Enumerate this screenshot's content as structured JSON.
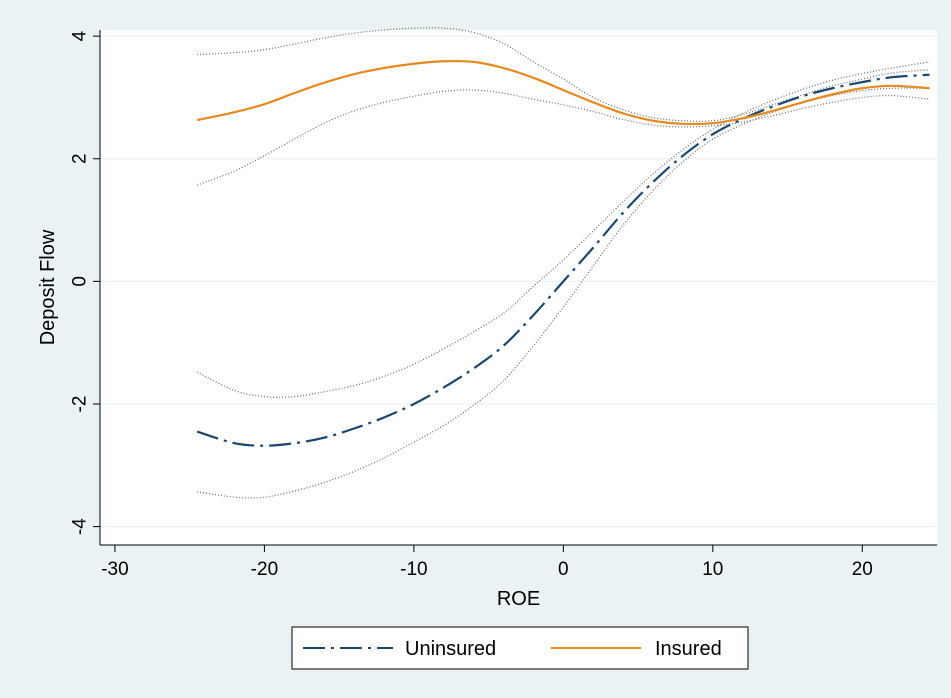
{
  "chart_data": {
    "type": "line",
    "title": "",
    "xlabel": "ROE",
    "ylabel": "Deposit Flow",
    "xlim": [
      -31,
      25
    ],
    "ylim": [
      -4.3,
      4.1
    ],
    "xticks": [
      -30,
      -20,
      -10,
      0,
      10,
      20
    ],
    "yticks": [
      -4,
      -2,
      0,
      2,
      4
    ],
    "grid": "horizontal",
    "legend_position": "bottom",
    "series": [
      {
        "name": "Uninsured",
        "color": "#1a476f",
        "style": "dash-dot",
        "x": [
          -24.5,
          -22,
          -20,
          -18,
          -16,
          -14,
          -12,
          -10,
          -8,
          -6,
          -4,
          -2,
          0,
          2,
          4,
          6,
          8,
          10,
          12,
          14,
          16,
          18,
          20,
          22,
          24.5
        ],
        "y": [
          -2.45,
          -2.64,
          -2.68,
          -2.64,
          -2.55,
          -2.4,
          -2.22,
          -2.0,
          -1.73,
          -1.42,
          -1.05,
          -0.55,
          0.0,
          0.55,
          1.12,
          1.62,
          2.05,
          2.4,
          2.65,
          2.85,
          3.02,
          3.15,
          3.25,
          3.33,
          3.37
        ]
      },
      {
        "name": "Insured",
        "color": "#e58a1f",
        "style": "solid",
        "x": [
          -24.5,
          -22,
          -20,
          -18,
          -16,
          -14,
          -12,
          -10,
          -8,
          -6,
          -4,
          -2,
          0,
          2,
          4,
          6,
          8,
          10,
          12,
          14,
          16,
          18,
          20,
          22,
          24.5
        ],
        "y": [
          2.63,
          2.76,
          2.89,
          3.07,
          3.24,
          3.38,
          3.48,
          3.55,
          3.59,
          3.58,
          3.48,
          3.32,
          3.12,
          2.92,
          2.74,
          2.62,
          2.57,
          2.58,
          2.66,
          2.78,
          2.92,
          3.05,
          3.15,
          3.19,
          3.15
        ]
      },
      {
        "name": "",
        "color": "#666666",
        "style": "dotted",
        "x": [
          -24.5,
          -22,
          -20,
          -18,
          -16,
          -14,
          -12,
          -10,
          -8,
          -6,
          -4,
          -2,
          0,
          2,
          4,
          6,
          8,
          10,
          12,
          14,
          16,
          18,
          20,
          22,
          24.5
        ],
        "y": [
          -1.48,
          -1.78,
          -1.88,
          -1.88,
          -1.8,
          -1.7,
          -1.55,
          -1.35,
          -1.1,
          -0.82,
          -0.52,
          -0.08,
          0.35,
          0.82,
          1.3,
          1.75,
          2.15,
          2.48,
          2.74,
          2.95,
          3.13,
          3.28,
          3.39,
          3.48,
          3.58
        ]
      },
      {
        "name": "",
        "color": "#666666",
        "style": "dotted",
        "x": [
          -24.5,
          -22,
          -20,
          -18,
          -16,
          -14,
          -12,
          -10,
          -8,
          -6,
          -4,
          -2,
          0,
          2,
          4,
          6,
          8,
          10,
          12,
          14,
          16,
          18,
          20,
          22,
          24.5
        ],
        "y": [
          -3.43,
          -3.52,
          -3.52,
          -3.42,
          -3.28,
          -3.1,
          -2.88,
          -2.62,
          -2.35,
          -2.02,
          -1.62,
          -1.05,
          -0.42,
          0.25,
          0.92,
          1.48,
          1.95,
          2.32,
          2.56,
          2.76,
          2.92,
          3.03,
          3.11,
          3.15,
          3.15
        ]
      },
      {
        "name": "",
        "color": "#666666",
        "style": "dotted",
        "x": [
          -24.5,
          -22,
          -20,
          -18,
          -16,
          -14,
          -12,
          -10,
          -8,
          -6,
          -4,
          -2,
          0,
          2,
          4,
          6,
          8,
          10,
          12,
          14,
          16,
          18,
          20,
          22,
          24.5
        ],
        "y": [
          3.7,
          3.73,
          3.78,
          3.87,
          3.97,
          4.05,
          4.1,
          4.13,
          4.13,
          4.06,
          3.88,
          3.58,
          3.3,
          3.0,
          2.8,
          2.67,
          2.62,
          2.62,
          2.72,
          2.88,
          3.04,
          3.19,
          3.3,
          3.4,
          3.45
        ]
      },
      {
        "name": "",
        "color": "#666666",
        "style": "dotted",
        "x": [
          -24.5,
          -22,
          -20,
          -18,
          -16,
          -14,
          -12,
          -10,
          -8,
          -6,
          -4,
          -2,
          0,
          2,
          4,
          6,
          8,
          10,
          12,
          14,
          16,
          18,
          20,
          22,
          24.5
        ],
        "y": [
          1.57,
          1.8,
          2.05,
          2.32,
          2.58,
          2.78,
          2.92,
          3.02,
          3.1,
          3.12,
          3.07,
          2.97,
          2.88,
          2.77,
          2.64,
          2.55,
          2.52,
          2.54,
          2.6,
          2.7,
          2.82,
          2.92,
          3.0,
          3.03,
          2.97
        ]
      }
    ]
  }
}
